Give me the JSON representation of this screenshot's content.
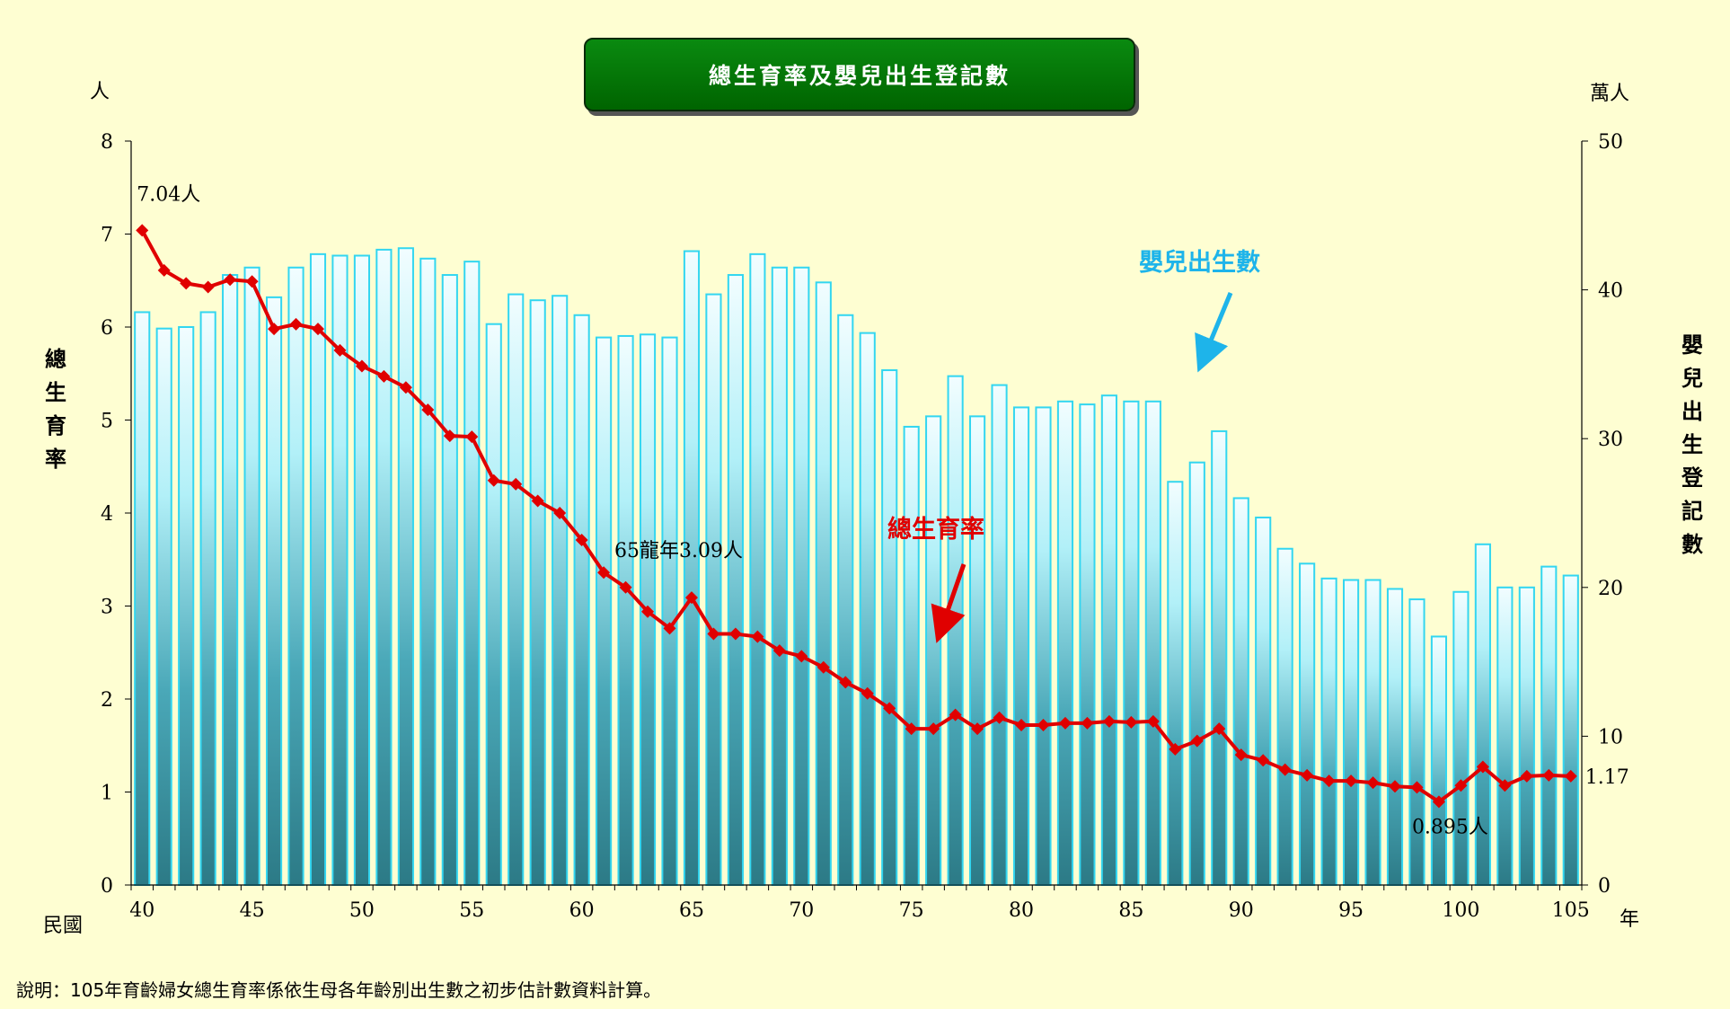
{
  "chart_data": {
    "type": "bar+line",
    "title": "總生育率及嬰兒出生登記數",
    "x": [
      40,
      41,
      42,
      43,
      44,
      45,
      46,
      47,
      48,
      49,
      50,
      51,
      52,
      53,
      54,
      55,
      56,
      57,
      58,
      59,
      60,
      61,
      62,
      63,
      64,
      65,
      66,
      67,
      68,
      69,
      70,
      71,
      72,
      73,
      74,
      75,
      76,
      77,
      78,
      79,
      80,
      81,
      82,
      83,
      84,
      85,
      86,
      87,
      88,
      89,
      90,
      91,
      92,
      93,
      94,
      95,
      96,
      97,
      98,
      99,
      100,
      101,
      102,
      103,
      104,
      105
    ],
    "xticks": [
      "40",
      "45",
      "50",
      "55",
      "60",
      "65",
      "70",
      "75",
      "80",
      "85",
      "90",
      "95",
      "100",
      "105"
    ],
    "xlabel_left": "民國",
    "xlabel_right": "年",
    "left_axis": {
      "unit": "人",
      "label": "總生育率",
      "ylim": [
        0,
        8
      ],
      "ticks": [
        "0",
        "1",
        "2",
        "3",
        "4",
        "5",
        "6",
        "7",
        "8"
      ]
    },
    "right_axis": {
      "unit": "萬人",
      "label": "嬰兒出生登記數",
      "ylim": [
        0,
        50
      ],
      "ticks": [
        "0",
        "10",
        "20",
        "30",
        "40",
        "50"
      ]
    },
    "series": [
      {
        "name": "嬰兒出生數",
        "axis": "right",
        "type": "bar",
        "color": "#33d6f0",
        "values": [
          38.5,
          37.4,
          37.5,
          38.5,
          41.0,
          41.5,
          39.5,
          41.5,
          42.4,
          42.3,
          42.3,
          42.7,
          42.8,
          42.1,
          41.0,
          41.9,
          37.7,
          39.7,
          39.3,
          39.6,
          38.3,
          36.8,
          36.9,
          37.0,
          36.8,
          42.6,
          39.7,
          41.0,
          42.4,
          41.5,
          41.5,
          40.5,
          38.3,
          37.1,
          34.6,
          30.8,
          31.5,
          34.2,
          31.5,
          33.6,
          32.1,
          32.1,
          32.5,
          32.3,
          32.9,
          32.5,
          32.5,
          27.1,
          28.4,
          30.5,
          26.0,
          24.7,
          22.6,
          21.6,
          20.6,
          20.5,
          20.5,
          19.9,
          19.2,
          16.7,
          19.7,
          22.9,
          20.0,
          20.0,
          21.4,
          20.8
        ]
      },
      {
        "name": "總生育率",
        "axis": "left",
        "type": "line",
        "color": "#e00000",
        "values": [
          7.04,
          6.61,
          6.47,
          6.43,
          6.51,
          6.49,
          5.98,
          6.03,
          5.98,
          5.75,
          5.58,
          5.47,
          5.35,
          5.11,
          4.83,
          4.82,
          4.35,
          4.31,
          4.13,
          4.0,
          3.71,
          3.36,
          3.2,
          2.94,
          2.76,
          3.09,
          2.7,
          2.7,
          2.67,
          2.52,
          2.46,
          2.34,
          2.18,
          2.06,
          1.9,
          1.68,
          1.68,
          1.83,
          1.68,
          1.8,
          1.72,
          1.72,
          1.74,
          1.74,
          1.76,
          1.75,
          1.76,
          1.46,
          1.55,
          1.68,
          1.4,
          1.34,
          1.24,
          1.18,
          1.12,
          1.12,
          1.1,
          1.06,
          1.05,
          0.895,
          1.07,
          1.27,
          1.07,
          1.17,
          1.18,
          1.17
        ]
      }
    ],
    "annotations": {
      "first_value": "7.04人",
      "dragon_year": "65龍年3.09人",
      "min_value": "0.895人",
      "last_value": "1.17"
    },
    "legend_labels": {
      "births": "嬰兒出生數",
      "tfr": "總生育率"
    },
    "grid": false
  },
  "footnote": "說明：105年育齡婦女總生育率係依生母各年齡別出生數之初步估計數資料計算。"
}
